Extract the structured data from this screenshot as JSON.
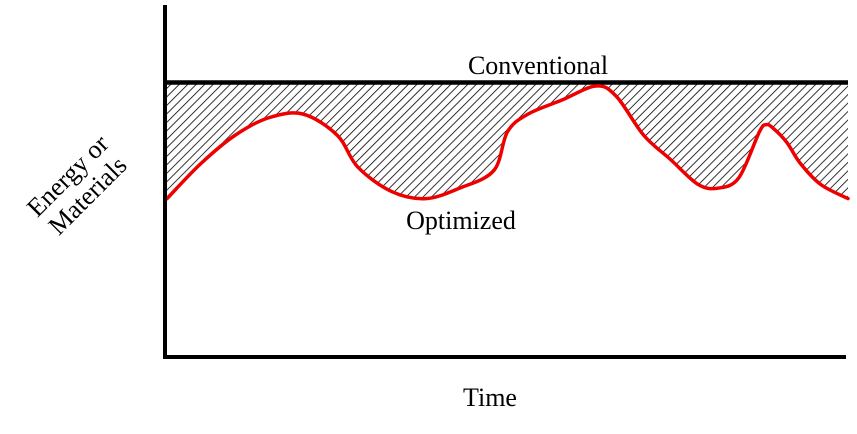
{
  "chart_data": {
    "type": "area",
    "title": "",
    "xlabel": "Time",
    "ylabel_lines": [
      "Energy or",
      "Materials"
    ],
    "xlim": [
      0,
      100
    ],
    "ylim": [
      0,
      100
    ],
    "grid": false,
    "legend": "none",
    "hatch_fill": "between Conventional and Optimized",
    "series": [
      {
        "name": "Conventional",
        "color": "#000000",
        "x": [
          0,
          100
        ],
        "values": [
          78,
          78
        ]
      },
      {
        "name": "Optimized",
        "color": "#ee0000",
        "x": [
          0,
          5,
          10,
          15,
          20,
          25,
          28,
          33,
          38,
          43,
          48,
          50,
          53,
          58,
          63,
          66,
          70,
          74,
          78,
          81,
          84,
          87,
          88,
          89,
          91,
          93,
          96,
          100
        ],
        "values": [
          45,
          55,
          63,
          68,
          69,
          63,
          54,
          47,
          45,
          48,
          53,
          64,
          69,
          73,
          77,
          74,
          63,
          56,
          49,
          48,
          51,
          64,
          66,
          65,
          61,
          55,
          49,
          45
        ]
      }
    ]
  }
}
